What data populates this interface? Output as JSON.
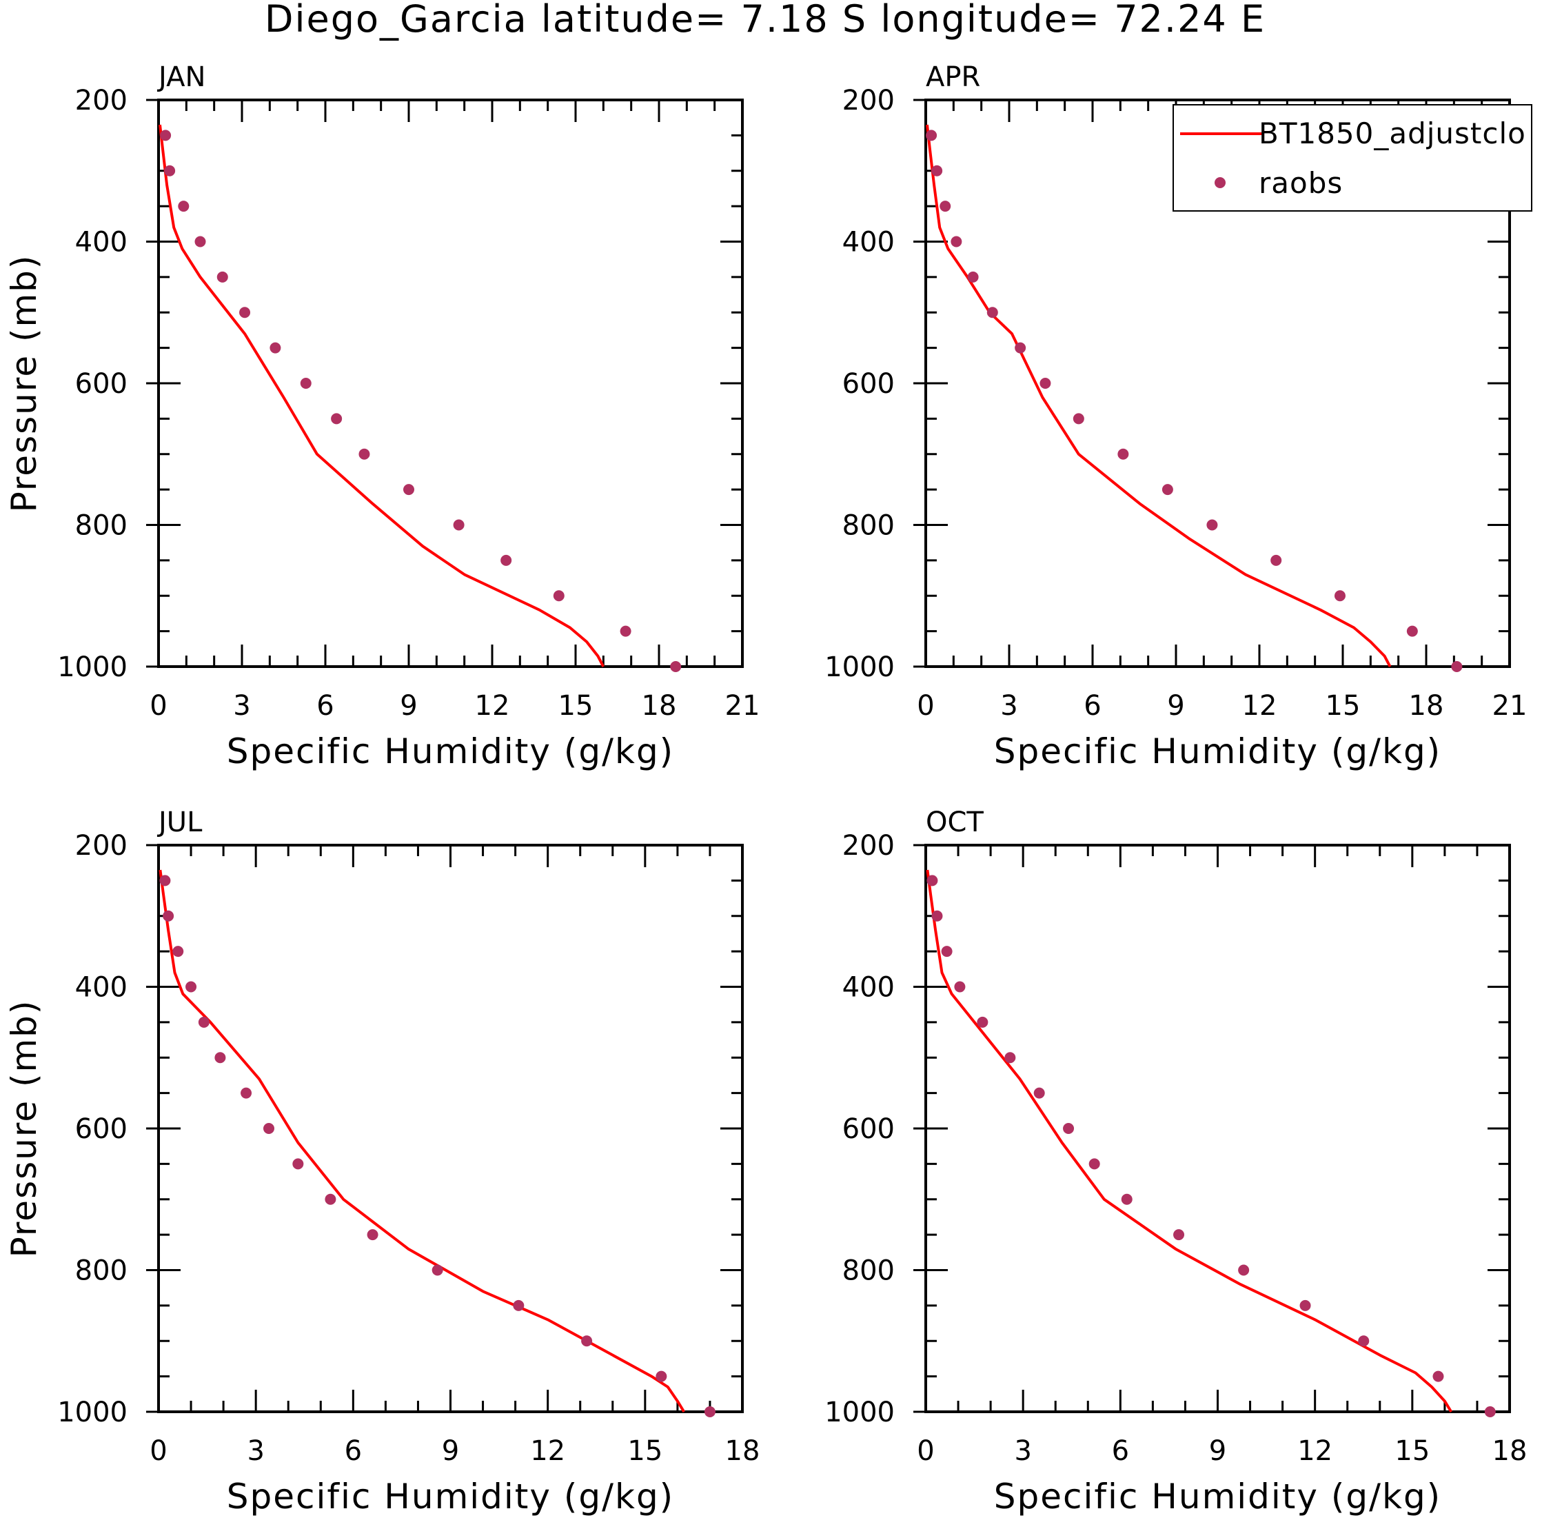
{
  "title": "Diego_Garcia  latitude= 7.18 S longitude= 72.24 E",
  "legend": {
    "line_label": "BT1850_adjustclo",
    "points_label": "raobs"
  },
  "colors": {
    "model": "#ff0000",
    "obs": "#b03060",
    "axes": "#000000"
  },
  "chart_data": [
    {
      "type": "line",
      "panel": "JAN",
      "xlabel": "Specific Humidity (g/kg)",
      "ylabel": "Pressure (mb)",
      "xlim": [
        0,
        21
      ],
      "ylim": [
        1000,
        200
      ],
      "xticks": [
        0,
        3,
        6,
        9,
        12,
        15,
        18,
        21
      ],
      "yticks": [
        200,
        400,
        600,
        800,
        1000
      ],
      "series": [
        {
          "name": "BT1850_adjustclo",
          "kind": "line",
          "x": [
            0.05,
            0.15,
            0.3,
            0.55,
            0.85,
            1.5,
            3.1,
            4.5,
            5.7,
            7.7,
            9.5,
            11.0,
            13.7,
            14.8,
            15.4,
            15.8,
            16.0
          ],
          "y": [
            235,
            270,
            320,
            380,
            410,
            450,
            530,
            620,
            700,
            770,
            830,
            870,
            920,
            945,
            965,
            985,
            1000
          ]
        },
        {
          "name": "raobs",
          "kind": "scatter",
          "x": [
            0.25,
            0.4,
            0.9,
            1.5,
            2.3,
            3.1,
            4.2,
            5.3,
            6.4,
            7.4,
            9.0,
            10.8,
            12.5,
            14.4,
            16.8,
            18.6
          ],
          "y": [
            250,
            300,
            350,
            400,
            450,
            500,
            550,
            600,
            650,
            700,
            750,
            800,
            850,
            900,
            950,
            1000
          ]
        }
      ]
    },
    {
      "type": "line",
      "panel": "APR",
      "xlabel": "Specific Humidity (g/kg)",
      "ylabel": "",
      "xlim": [
        0,
        21
      ],
      "ylim": [
        1000,
        200
      ],
      "xticks": [
        0,
        3,
        6,
        9,
        12,
        15,
        18,
        21
      ],
      "yticks": [
        200,
        400,
        600,
        800,
        1000
      ],
      "series": [
        {
          "name": "BT1850_adjustclo",
          "kind": "line",
          "x": [
            0.05,
            0.15,
            0.3,
            0.5,
            0.8,
            1.5,
            2.3,
            3.1,
            4.2,
            5.5,
            7.7,
            9.5,
            11.5,
            14.2,
            15.4,
            16.0,
            16.5,
            16.7
          ],
          "y": [
            235,
            270,
            320,
            380,
            410,
            450,
            500,
            530,
            620,
            700,
            770,
            820,
            870,
            920,
            945,
            965,
            985,
            1000
          ]
        },
        {
          "name": "raobs",
          "kind": "scatter",
          "x": [
            0.2,
            0.4,
            0.7,
            1.1,
            1.7,
            2.4,
            3.4,
            4.3,
            5.5,
            7.1,
            8.7,
            10.3,
            12.6,
            14.9,
            17.5,
            19.1
          ],
          "y": [
            250,
            300,
            350,
            400,
            450,
            500,
            550,
            600,
            650,
            700,
            750,
            800,
            850,
            900,
            950,
            1000
          ]
        }
      ]
    },
    {
      "type": "line",
      "panel": "JUL",
      "xlabel": "Specific Humidity (g/kg)",
      "ylabel": "Pressure (mb)",
      "xlim": [
        0,
        18
      ],
      "ylim": [
        1000,
        200
      ],
      "xticks": [
        0,
        3,
        6,
        9,
        12,
        15,
        18
      ],
      "yticks": [
        200,
        400,
        600,
        800,
        1000
      ],
      "series": [
        {
          "name": "BT1850_adjustclo",
          "kind": "line",
          "x": [
            0.05,
            0.15,
            0.3,
            0.5,
            0.75,
            1.6,
            3.1,
            4.3,
            5.7,
            7.7,
            10.0,
            12.0,
            14.0,
            15.2,
            15.7,
            16.0,
            16.2
          ],
          "y": [
            235,
            270,
            320,
            380,
            410,
            450,
            530,
            620,
            700,
            770,
            830,
            870,
            920,
            950,
            965,
            985,
            1000
          ]
        },
        {
          "name": "raobs",
          "kind": "scatter",
          "x": [
            0.2,
            0.3,
            0.6,
            1.0,
            1.4,
            1.9,
            2.7,
            3.4,
            4.3,
            5.3,
            6.6,
            8.6,
            11.1,
            13.2,
            15.5,
            17.0
          ],
          "y": [
            250,
            300,
            350,
            400,
            450,
            500,
            550,
            600,
            650,
            700,
            750,
            800,
            850,
            900,
            950,
            1000
          ]
        }
      ]
    },
    {
      "type": "line",
      "panel": "OCT",
      "xlabel": "Specific Humidity (g/kg)",
      "ylabel": "",
      "xlim": [
        0,
        18
      ],
      "ylim": [
        1000,
        200
      ],
      "xticks": [
        0,
        3,
        6,
        9,
        12,
        15,
        18
      ],
      "yticks": [
        200,
        400,
        600,
        800,
        1000
      ],
      "series": [
        {
          "name": "BT1850_adjustclo",
          "kind": "line",
          "x": [
            0.05,
            0.15,
            0.3,
            0.5,
            0.8,
            1.5,
            2.9,
            4.2,
            5.5,
            7.7,
            9.7,
            12.0,
            14.0,
            15.1,
            15.6,
            16.0,
            16.2
          ],
          "y": [
            235,
            270,
            320,
            380,
            410,
            450,
            530,
            620,
            700,
            770,
            820,
            870,
            920,
            945,
            965,
            985,
            1000
          ]
        },
        {
          "name": "raobs",
          "kind": "scatter",
          "x": [
            0.2,
            0.35,
            0.65,
            1.05,
            1.75,
            2.6,
            3.5,
            4.4,
            5.2,
            6.2,
            7.8,
            9.8,
            11.7,
            13.5,
            15.8,
            17.4
          ],
          "y": [
            250,
            300,
            350,
            400,
            450,
            500,
            550,
            600,
            650,
            700,
            750,
            800,
            850,
            900,
            950,
            1000
          ]
        }
      ]
    }
  ]
}
